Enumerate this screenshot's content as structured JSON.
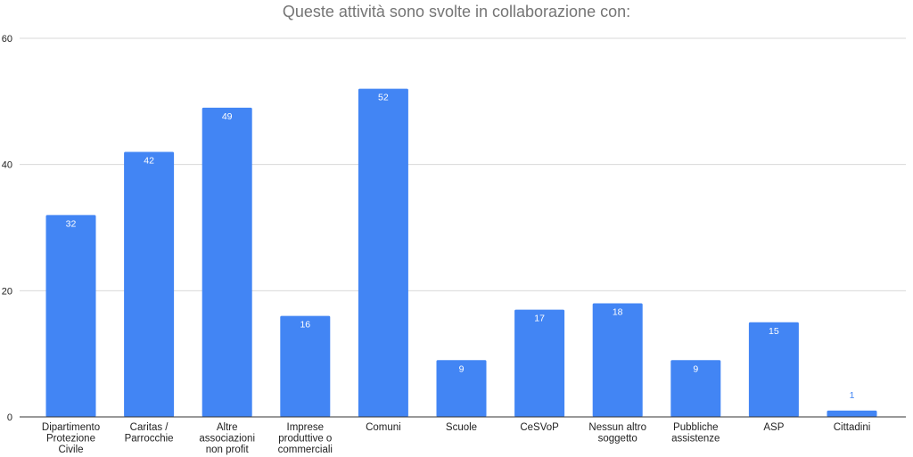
{
  "chart_data": {
    "type": "bar",
    "title": "Queste attività sono svolte in collaborazione con:",
    "xlabel": "",
    "ylabel": "",
    "ylim": [
      0,
      60
    ],
    "yticks": [
      0,
      20,
      40,
      60
    ],
    "grid": true,
    "legend": "none",
    "categories": [
      "Dipartimento Protezione Civile",
      "Caritas / Parrocchie",
      "Altre associazioni non profit",
      "Imprese produttive o commerciali",
      "Comuni",
      "Scuole",
      "CeSVoP",
      "Nessun altro soggetto",
      "Pubbliche assistenze",
      "ASP",
      "Cittadini"
    ],
    "category_label_lines": [
      [
        "Dipartimento",
        "Protezione",
        "Civile"
      ],
      [
        "Caritas /",
        "Parrocchie"
      ],
      [
        "Altre",
        "associazioni",
        "non profit"
      ],
      [
        "Imprese",
        "produttive o",
        "commerciali"
      ],
      [
        "Comuni"
      ],
      [
        "Scuole"
      ],
      [
        "CeSVoP"
      ],
      [
        "Nessun altro",
        "soggetto"
      ],
      [
        "Pubbliche",
        "assistenze"
      ],
      [
        "ASP"
      ],
      [
        "Cittadini"
      ]
    ],
    "values": [
      32,
      42,
      49,
      16,
      52,
      9,
      17,
      18,
      9,
      15,
      1
    ],
    "data_labels": [
      "32",
      "42",
      "49",
      "16",
      "52",
      "9",
      "17",
      "18",
      "9",
      "15",
      "1"
    ],
    "colors": {
      "bar": "#4285f4",
      "label_inside": "#ffffff",
      "label_outside": "#4285f4",
      "gridline": "#d9d9d9",
      "baseline": "#333333"
    }
  }
}
